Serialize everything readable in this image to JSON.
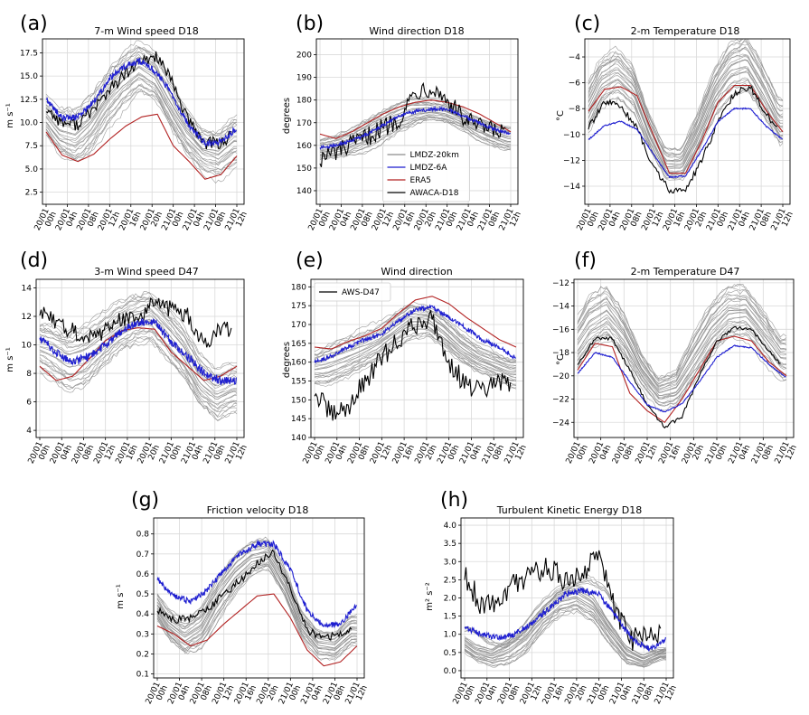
{
  "colors": {
    "lmdz20": "#8c8c8c",
    "lmdz6a": "#1f1fd0",
    "era5": "#b22222",
    "obs": "#000000",
    "grid": "#d9d9d9"
  },
  "time_ticks": [
    "20/01 00h",
    "20/01 04h",
    "20/01 08h",
    "20/01 12h",
    "20/01 16h",
    "20/01 20h",
    "21/01 00h",
    "21/01 04h",
    "21/01 08h",
    "21/01 12h"
  ],
  "chart_data": [
    {
      "id": "a",
      "label": "(a)",
      "type": "line",
      "title": "7-m Wind speed D18",
      "ylabel": "m s⁻¹",
      "ylim": [
        1.2,
        19.0
      ],
      "yticks": [
        2.5,
        5.0,
        7.5,
        10.0,
        12.5,
        15.0,
        17.5
      ],
      "ytick_labels": [
        "2.5",
        "5.0",
        "7.5",
        "10.0",
        "12.5",
        "15.0",
        "17.5"
      ],
      "x_hours": [
        0,
        3,
        6,
        9,
        12,
        15,
        18,
        21,
        24,
        27,
        30,
        33,
        36
      ],
      "lmdz6a": [
        12.5,
        10.5,
        10.6,
        12.2,
        14.8,
        16.1,
        16.6,
        15.3,
        12.8,
        9.6,
        7.8,
        7.9,
        9.4
      ],
      "era5": [
        9.0,
        6.5,
        5.8,
        6.6,
        8.2,
        9.6,
        10.6,
        10.9,
        7.5,
        5.8,
        3.9,
        4.4,
        6.4
      ],
      "obs": [
        11.5,
        10.0,
        9.8,
        11.5,
        13.5,
        15.2,
        16.5,
        17.2,
        14.0,
        10.0,
        7.8,
        7.8,
        8.9
      ],
      "ensemble_center": [
        11.0,
        9.0,
        8.5,
        10.0,
        12.5,
        14.5,
        16.0,
        15.0,
        12.0,
        9.0,
        7.0,
        6.5,
        8.0
      ],
      "ensemble_spread": [
        2.0,
        2.5,
        3.0,
        3.2,
        3.0,
        2.8,
        2.5,
        2.5,
        2.8,
        2.8,
        2.5,
        2.5,
        2.5
      ],
      "obs_noise": 0.7,
      "lmdz6a_noise": 0.35,
      "legend": null
    },
    {
      "id": "b",
      "label": "(b)",
      "type": "line",
      "title": "Wind direction D18",
      "ylabel": "degrees",
      "ylim": [
        134,
        207
      ],
      "yticks": [
        140,
        150,
        160,
        170,
        180,
        190,
        200
      ],
      "ytick_labels": [
        "140",
        "150",
        "160",
        "170",
        "180",
        "190",
        "200"
      ],
      "x_hours": [
        0,
        3,
        6,
        9,
        12,
        15,
        18,
        21,
        24,
        27,
        30,
        33,
        36
      ],
      "lmdz6a": [
        159,
        160,
        162,
        165,
        169,
        173,
        175,
        176,
        176,
        173,
        170,
        167,
        165
      ],
      "era5": [
        165,
        163,
        166,
        170,
        174,
        177,
        179,
        180,
        179,
        177,
        174,
        170,
        166
      ],
      "obs": [
        154,
        157,
        160,
        164,
        168,
        172,
        184,
        186,
        180,
        172,
        168,
        166,
        165
      ],
      "ensemble_center": [
        158,
        159,
        161,
        164,
        168,
        172,
        175,
        176,
        175,
        172,
        168,
        165,
        163
      ],
      "ensemble_spread": [
        4,
        5,
        6,
        7,
        7,
        6,
        6,
        5,
        5,
        5,
        5,
        5,
        5
      ],
      "obs_noise": 4.5,
      "lmdz6a_noise": 0.8,
      "legend": {
        "position": "lower-center",
        "entries": [
          {
            "key": "lmdz20",
            "name": "LMDZ-20km"
          },
          {
            "key": "lmdz6a",
            "name": "LMDZ-6A"
          },
          {
            "key": "era5",
            "name": "ERA5"
          },
          {
            "key": "obs",
            "name": "AWACA-D18"
          }
        ]
      }
    },
    {
      "id": "c",
      "label": "(c)",
      "type": "line",
      "title": "2-m Temperature D18",
      "ylabel": "°C",
      "ylim": [
        -15.4,
        -2.6
      ],
      "yticks": [
        -14,
        -12,
        -10,
        -8,
        -6,
        -4
      ],
      "ytick_labels": [
        "−14",
        "−12",
        "−10",
        "−8",
        "−6",
        "−4"
      ],
      "x_hours": [
        0,
        3,
        6,
        9,
        12,
        15,
        18,
        21,
        24,
        27,
        30,
        33,
        36
      ],
      "lmdz6a": [
        -10.4,
        -9.3,
        -9.0,
        -9.6,
        -11.5,
        -13.3,
        -13.2,
        -11.2,
        -9.0,
        -8.0,
        -8.0,
        -9.4,
        -10.4
      ],
      "era5": [
        -8.2,
        -6.5,
        -6.3,
        -7.0,
        -10.0,
        -13.0,
        -13.0,
        -10.5,
        -7.5,
        -6.2,
        -6.2,
        -8.2,
        -9.8
      ],
      "obs": [
        -9.5,
        -7.5,
        -7.8,
        -9.5,
        -12.5,
        -14.3,
        -14.3,
        -12.0,
        -9.0,
        -6.8,
        -6.3,
        -8.5,
        -10.0
      ],
      "ensemble_center": [
        -8.5,
        -6.0,
        -5.3,
        -6.5,
        -9.8,
        -12.3,
        -12.3,
        -9.8,
        -6.8,
        -5.0,
        -4.5,
        -6.5,
        -9.0
      ],
      "ensemble_spread": [
        1.8,
        2.0,
        2.0,
        1.8,
        1.4,
        1.2,
        1.2,
        1.5,
        1.8,
        2.0,
        2.0,
        2.0,
        1.8
      ],
      "obs_noise": 0.25,
      "lmdz6a_noise": 0.05,
      "legend": null
    },
    {
      "id": "d",
      "label": "(d)",
      "type": "line",
      "title": "3-m Wind speed D47",
      "ylabel": "m s⁻¹",
      "ylim": [
        3.5,
        14.6
      ],
      "yticks": [
        4,
        6,
        8,
        10,
        12,
        14
      ],
      "ytick_labels": [
        "4",
        "6",
        "8",
        "10",
        "12",
        "14"
      ],
      "x_hours": [
        0,
        3,
        6,
        9,
        12,
        15,
        18,
        21,
        24,
        27,
        30,
        33,
        36
      ],
      "lmdz6a": [
        10.5,
        9.5,
        8.8,
        9.2,
        10.0,
        11.0,
        11.6,
        11.6,
        10.2,
        9.2,
        8.0,
        7.5,
        7.5
      ],
      "era5": [
        8.5,
        7.5,
        7.8,
        9.0,
        10.3,
        11.0,
        11.2,
        11.1,
        9.5,
        8.5,
        7.5,
        7.8,
        8.5
      ],
      "obs": [
        12.3,
        11.5,
        11.0,
        10.5,
        11.0,
        11.8,
        12.0,
        13.0,
        12.5,
        12.0,
        10.0,
        11.2,
        10.8
      ],
      "ensemble_center": [
        10.0,
        9.5,
        8.8,
        9.2,
        10.2,
        11.2,
        11.8,
        12.0,
        10.8,
        9.5,
        7.5,
        6.5,
        7.0
      ],
      "ensemble_spread": [
        1.8,
        2.0,
        2.0,
        2.0,
        1.8,
        1.8,
        1.8,
        1.8,
        1.8,
        1.8,
        1.8,
        1.8,
        1.8
      ],
      "obs_noise": 0.6,
      "lmdz6a_noise": 0.3,
      "legend": null
    },
    {
      "id": "e",
      "label": "(e)",
      "type": "line",
      "title": "Wind direction",
      "ylabel": "degrees",
      "ylim": [
        140,
        182
      ],
      "yticks": [
        140,
        145,
        150,
        155,
        160,
        165,
        170,
        175,
        180
      ],
      "ytick_labels": [
        "140",
        "145",
        "150",
        "155",
        "160",
        "165",
        "170",
        "175",
        "180"
      ],
      "x_hours": [
        0,
        3,
        6,
        9,
        12,
        15,
        18,
        21,
        24,
        27,
        30,
        33,
        36
      ],
      "lmdz6a": [
        160,
        161.5,
        164,
        166,
        167.5,
        171,
        174,
        174.5,
        172,
        169,
        166,
        164,
        161
      ],
      "era5": [
        164,
        163.5,
        165.5,
        167,
        169,
        173,
        176.5,
        177.5,
        175.5,
        172,
        169,
        166,
        164
      ],
      "obs": [
        152,
        146,
        148,
        155,
        161,
        166,
        170,
        172,
        160,
        154,
        152,
        155,
        153
      ],
      "ensemble_center": [
        158,
        159,
        161,
        163,
        165,
        168,
        171,
        171,
        168,
        164,
        161,
        159,
        157
      ],
      "ensemble_spread": [
        4,
        5,
        5,
        5,
        5,
        5,
        5,
        4,
        4,
        4,
        4,
        4,
        4
      ],
      "obs_noise": 2.8,
      "lmdz6a_noise": 0.6,
      "legend": {
        "position": "upper-left",
        "entries": [
          {
            "key": "obs",
            "name": "AWS-D47"
          }
        ]
      }
    },
    {
      "id": "f",
      "label": "(f)",
      "type": "line",
      "title": "2-m Temperature D47",
      "ylabel": "°C",
      "ylim": [
        -25.3,
        -11.7
      ],
      "yticks": [
        -24,
        -22,
        -20,
        -18,
        -16,
        -14,
        -12
      ],
      "ytick_labels": [
        "−24",
        "−22",
        "−20",
        "−18",
        "−16",
        "−14",
        "−12"
      ],
      "x_hours": [
        0,
        3,
        6,
        9,
        12,
        15,
        18,
        21,
        24,
        27,
        30,
        33,
        36
      ],
      "lmdz6a": [
        -19.8,
        -18.0,
        -18.4,
        -20.5,
        -22.5,
        -23.1,
        -22.4,
        -20.5,
        -18.4,
        -17.4,
        -17.6,
        -19.0,
        -20.2
      ],
      "era5": [
        -19.5,
        -17.2,
        -17.5,
        -21.5,
        -23.0,
        -24.0,
        -22.0,
        -19.5,
        -17.0,
        -16.6,
        -17.0,
        -18.8,
        -20.0
      ],
      "obs": [
        -19.0,
        -16.8,
        -16.8,
        -19.5,
        -22.5,
        -24.4,
        -23.5,
        -20.0,
        -17.0,
        -15.9,
        -16.0,
        -17.8,
        -19.5
      ],
      "ensemble_center": [
        -18.0,
        -15.5,
        -14.5,
        -16.5,
        -19.5,
        -21.5,
        -21.0,
        -18.5,
        -16.0,
        -14.5,
        -14.5,
        -16.5,
        -18.5
      ],
      "ensemble_spread": [
        1.8,
        2.2,
        2.4,
        2.2,
        1.6,
        1.3,
        1.3,
        1.8,
        2.2,
        2.4,
        2.4,
        2.2,
        1.8
      ],
      "obs_noise": 0.15,
      "lmdz6a_noise": 0.05,
      "legend": null
    },
    {
      "id": "g",
      "label": "(g)",
      "type": "line",
      "title": "Friction velocity D18",
      "ylabel": "m s⁻¹",
      "ylim": [
        0.08,
        0.88
      ],
      "yticks": [
        0.1,
        0.2,
        0.3,
        0.4,
        0.5,
        0.6,
        0.7,
        0.8
      ],
      "ytick_labels": [
        "0.1",
        "0.2",
        "0.3",
        "0.4",
        "0.5",
        "0.6",
        "0.7",
        "0.8"
      ],
      "x_hours": [
        0,
        3,
        6,
        9,
        12,
        15,
        18,
        21,
        24,
        27,
        30,
        33,
        36
      ],
      "lmdz6a": [
        0.57,
        0.49,
        0.46,
        0.52,
        0.62,
        0.7,
        0.75,
        0.75,
        0.62,
        0.42,
        0.34,
        0.35,
        0.45
      ],
      "era5": [
        0.34,
        0.3,
        0.24,
        0.27,
        0.35,
        0.42,
        0.49,
        0.5,
        0.38,
        0.22,
        0.14,
        0.16,
        0.24
      ],
      "obs": [
        0.42,
        0.37,
        0.38,
        0.42,
        0.5,
        0.57,
        0.65,
        0.71,
        0.52,
        0.32,
        0.28,
        0.3,
        0.33
      ],
      "ensemble_center": [
        0.48,
        0.35,
        0.28,
        0.33,
        0.48,
        0.6,
        0.68,
        0.7,
        0.56,
        0.35,
        0.25,
        0.24,
        0.32
      ],
      "ensemble_spread": [
        0.07,
        0.08,
        0.09,
        0.1,
        0.1,
        0.09,
        0.08,
        0.08,
        0.09,
        0.08,
        0.07,
        0.06,
        0.07
      ],
      "obs_noise": 0.02,
      "lmdz6a_noise": 0.015,
      "legend": null
    },
    {
      "id": "h",
      "label": "(h)",
      "type": "line",
      "title": "Turbulent Kinetic Energy D18",
      "ylabel": "m² s⁻²",
      "ylim": [
        -0.2,
        4.2
      ],
      "yticks": [
        0.0,
        0.5,
        1.0,
        1.5,
        2.0,
        2.5,
        3.0,
        3.5,
        4.0
      ],
      "ytick_labels": [
        "0.0",
        "0.5",
        "1.0",
        "1.5",
        "2.0",
        "2.5",
        "3.0",
        "3.5",
        "4.0"
      ],
      "x_hours": [
        0,
        3,
        6,
        9,
        12,
        15,
        18,
        21,
        24,
        27,
        30,
        33,
        36
      ],
      "lmdz6a": [
        1.2,
        1.0,
        0.9,
        1.0,
        1.3,
        1.7,
        2.1,
        2.2,
        2.1,
        1.5,
        0.85,
        0.6,
        0.85
      ],
      "era5": null,
      "obs": [
        2.6,
        1.8,
        2.0,
        2.4,
        2.6,
        2.9,
        2.4,
        2.6,
        3.2,
        1.6,
        0.9,
        1.0,
        1.2
      ],
      "ensemble_center": [
        0.9,
        0.55,
        0.4,
        0.6,
        1.0,
        1.6,
        2.0,
        2.1,
        1.8,
        1.1,
        0.5,
        0.3,
        0.5
      ],
      "ensemble_spread": [
        0.3,
        0.3,
        0.3,
        0.4,
        0.5,
        0.5,
        0.5,
        0.5,
        0.5,
        0.4,
        0.3,
        0.2,
        0.2
      ],
      "obs_noise": 0.35,
      "lmdz6a_noise": 0.08,
      "legend": null
    }
  ]
}
